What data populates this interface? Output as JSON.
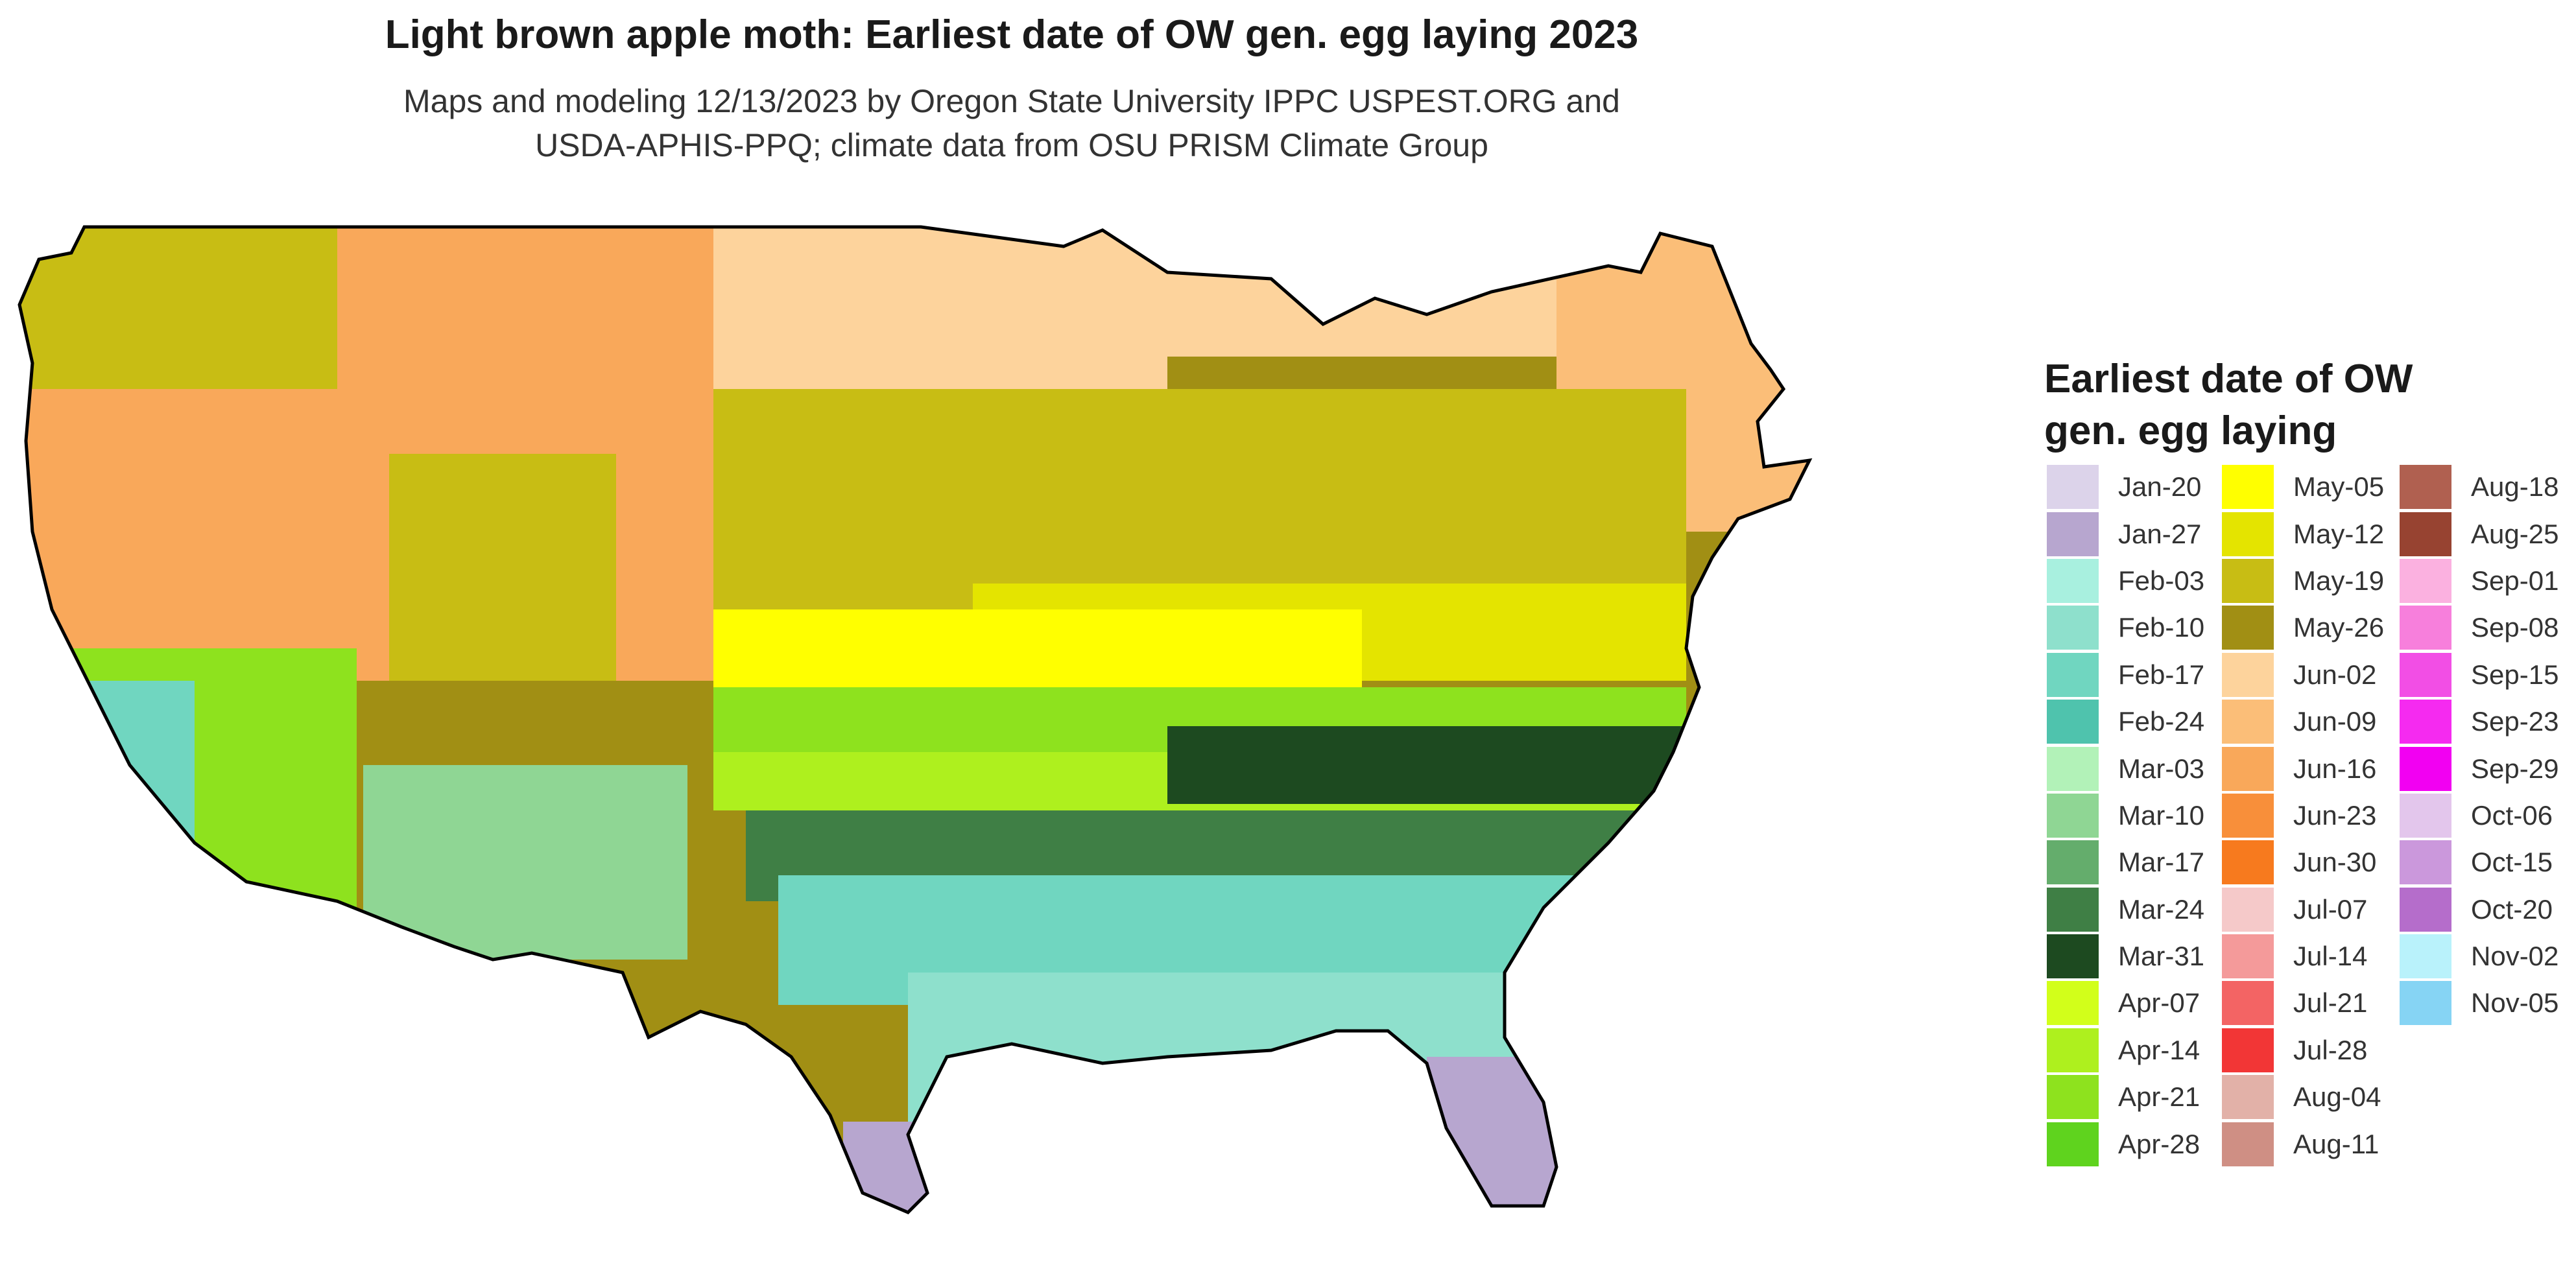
{
  "title": "Light brown apple moth: Earliest date of OW gen. egg laying 2023",
  "subtitle_line1": "Maps and modeling 12/13/2023 by Oregon State University IPPC USPEST.ORG and",
  "subtitle_line2": "USDA-APHIS-PPQ; climate data from OSU PRISM Climate Group",
  "legend": {
    "title_line1": "Earliest date of OW",
    "title_line2": "gen. egg laying",
    "items": [
      {
        "label": "Jan-20",
        "color": "#dcd3ea"
      },
      {
        "label": "Jan-27",
        "color": "#b7a6cf"
      },
      {
        "label": "Feb-03",
        "color": "#a8f0df"
      },
      {
        "label": "Feb-10",
        "color": "#8ee0cc"
      },
      {
        "label": "Feb-17",
        "color": "#70d6c0"
      },
      {
        "label": "Feb-24",
        "color": "#4fc3ad"
      },
      {
        "label": "Mar-03",
        "color": "#b2f2b8"
      },
      {
        "label": "Mar-10",
        "color": "#8fd694"
      },
      {
        "label": "Mar-17",
        "color": "#64ad6c"
      },
      {
        "label": "Mar-24",
        "color": "#3f7f45"
      },
      {
        "label": "Mar-31",
        "color": "#1d4a20"
      },
      {
        "label": "Apr-07",
        "color": "#d2ff1a"
      },
      {
        "label": "Apr-14",
        "color": "#aef01e"
      },
      {
        "label": "Apr-21",
        "color": "#8ee21e"
      },
      {
        "label": "Apr-28",
        "color": "#5fd31e"
      },
      {
        "label": "May-05",
        "color": "#ffff00"
      },
      {
        "label": "May-12",
        "color": "#e4e400"
      },
      {
        "label": "May-19",
        "color": "#c8bd14"
      },
      {
        "label": "May-26",
        "color": "#a18f14"
      },
      {
        "label": "Jun-02",
        "color": "#fdd39c"
      },
      {
        "label": "Jun-09",
        "color": "#fbbe78"
      },
      {
        "label": "Jun-16",
        "color": "#f9a85a"
      },
      {
        "label": "Jun-23",
        "color": "#f88f3a"
      },
      {
        "label": "Jun-30",
        "color": "#f77a1e"
      },
      {
        "label": "Jul-07",
        "color": "#f5c9c9"
      },
      {
        "label": "Jul-14",
        "color": "#f49a9a"
      },
      {
        "label": "Jul-21",
        "color": "#f36464"
      },
      {
        "label": "Jul-28",
        "color": "#f23636"
      },
      {
        "label": "Aug-04",
        "color": "#e2b1a8"
      },
      {
        "label": "Aug-11",
        "color": "#cf8f84"
      },
      {
        "label": "Aug-18",
        "color": "#b06050"
      },
      {
        "label": "Aug-25",
        "color": "#974331"
      },
      {
        "label": "Sep-01",
        "color": "#fbb1e0"
      },
      {
        "label": "Sep-08",
        "color": "#f77fdc"
      },
      {
        "label": "Sep-15",
        "color": "#f24ee5"
      },
      {
        "label": "Sep-23",
        "color": "#f52af0"
      },
      {
        "label": "Sep-29",
        "color": "#f200f2"
      },
      {
        "label": "Oct-06",
        "color": "#e3c6ec"
      },
      {
        "label": "Oct-15",
        "color": "#cb98dc"
      },
      {
        "label": "Oct-20",
        "color": "#b56dcb"
      },
      {
        "label": "Nov-02",
        "color": "#b9f2fb"
      },
      {
        "label": "Nov-05",
        "color": "#86d4f4"
      }
    ]
  }
}
